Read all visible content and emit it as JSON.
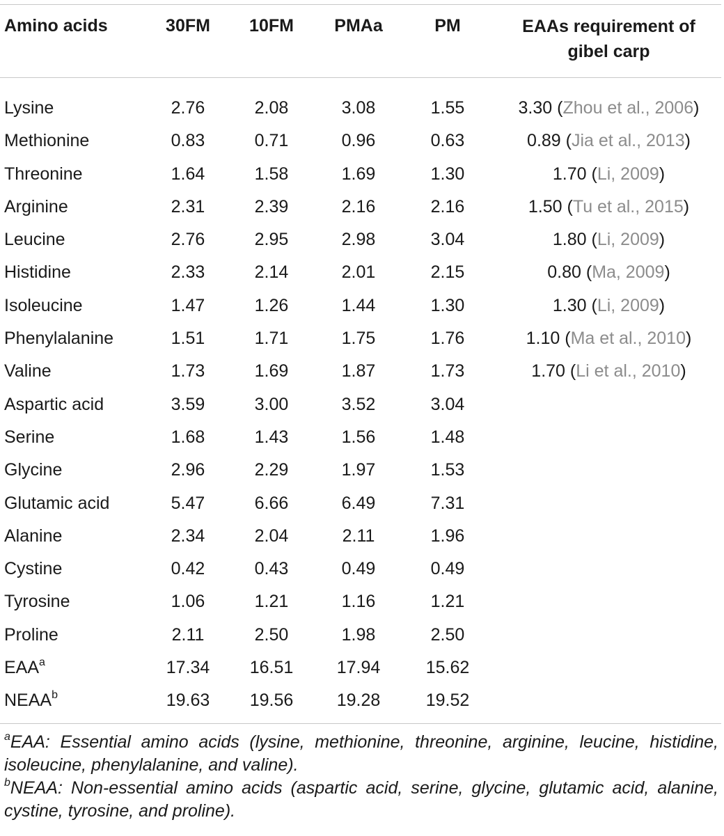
{
  "headers": {
    "amino_acids": "Amino acids",
    "col_30fm": "30FM",
    "col_10fm": "10FM",
    "col_pmaa": "PMAa",
    "col_pm": "PM",
    "requirement_line1": "EAAs requirement of",
    "requirement_line2": "gibel carp"
  },
  "rows": [
    {
      "name": "Lysine",
      "v30fm": "2.76",
      "v10fm": "2.08",
      "vpmaa": "3.08",
      "vpm": "1.55",
      "req_value": "3.30",
      "req_ref": "Zhou et al., 2006"
    },
    {
      "name": "Methionine",
      "v30fm": "0.83",
      "v10fm": "0.71",
      "vpmaa": "0.96",
      "vpm": "0.63",
      "req_value": "0.89",
      "req_ref": "Jia et al., 2013"
    },
    {
      "name": "Threonine",
      "v30fm": "1.64",
      "v10fm": "1.58",
      "vpmaa": "1.69",
      "vpm": "1.30",
      "req_value": "1.70",
      "req_ref": "Li, 2009"
    },
    {
      "name": "Arginine",
      "v30fm": "2.31",
      "v10fm": "2.39",
      "vpmaa": "2.16",
      "vpm": "2.16",
      "req_value": "1.50",
      "req_ref": "Tu et al., 2015"
    },
    {
      "name": "Leucine",
      "v30fm": "2.76",
      "v10fm": "2.95",
      "vpmaa": "2.98",
      "vpm": "3.04",
      "req_value": "1.80",
      "req_ref": "Li, 2009"
    },
    {
      "name": "Histidine",
      "v30fm": "2.33",
      "v10fm": "2.14",
      "vpmaa": "2.01",
      "vpm": "2.15",
      "req_value": "0.80",
      "req_ref": "Ma, 2009"
    },
    {
      "name": "Isoleucine",
      "v30fm": "1.47",
      "v10fm": "1.26",
      "vpmaa": "1.44",
      "vpm": "1.30",
      "req_value": "1.30",
      "req_ref": "Li, 2009"
    },
    {
      "name": "Phenylalanine",
      "v30fm": "1.51",
      "v10fm": "1.71",
      "vpmaa": "1.75",
      "vpm": "1.76",
      "req_value": "1.10",
      "req_ref": "Ma et al., 2010"
    },
    {
      "name": "Valine",
      "v30fm": "1.73",
      "v10fm": "1.69",
      "vpmaa": "1.87",
      "vpm": "1.73",
      "req_value": "1.70",
      "req_ref": "Li et al., 2010"
    },
    {
      "name": "Aspartic acid",
      "v30fm": "3.59",
      "v10fm": "3.00",
      "vpmaa": "3.52",
      "vpm": "3.04",
      "req_value": "",
      "req_ref": ""
    },
    {
      "name": "Serine",
      "v30fm": "1.68",
      "v10fm": "1.43",
      "vpmaa": "1.56",
      "vpm": "1.48",
      "req_value": "",
      "req_ref": ""
    },
    {
      "name": "Glycine",
      "v30fm": "2.96",
      "v10fm": "2.29",
      "vpmaa": "1.97",
      "vpm": "1.53",
      "req_value": "",
      "req_ref": ""
    },
    {
      "name": "Glutamic acid",
      "v30fm": "5.47",
      "v10fm": "6.66",
      "vpmaa": "6.49",
      "vpm": "7.31",
      "req_value": "",
      "req_ref": ""
    },
    {
      "name": "Alanine",
      "v30fm": "2.34",
      "v10fm": "2.04",
      "vpmaa": "2.11",
      "vpm": "1.96",
      "req_value": "",
      "req_ref": ""
    },
    {
      "name": "Cystine",
      "v30fm": "0.42",
      "v10fm": "0.43",
      "vpmaa": "0.49",
      "vpm": "0.49",
      "req_value": "",
      "req_ref": ""
    },
    {
      "name": "Tyrosine",
      "v30fm": "1.06",
      "v10fm": "1.21",
      "vpmaa": "1.16",
      "vpm": "1.21",
      "req_value": "",
      "req_ref": ""
    },
    {
      "name": "Proline",
      "v30fm": "2.11",
      "v10fm": "2.50",
      "vpmaa": "1.98",
      "vpm": "2.50",
      "req_value": "",
      "req_ref": ""
    },
    {
      "name": "EAA",
      "sup": "a",
      "v30fm": "17.34",
      "v10fm": "16.51",
      "vpmaa": "17.94",
      "vpm": "15.62",
      "req_value": "",
      "req_ref": ""
    },
    {
      "name": "NEAA",
      "sup": "b",
      "v30fm": "19.63",
      "v10fm": "19.56",
      "vpmaa": "19.28",
      "vpm": "19.52",
      "req_value": "",
      "req_ref": ""
    }
  ],
  "footnotes": [
    {
      "mark": "a",
      "text": "EAA: Essential amino acids (lysine, methionine, threonine, arginine, leucine, histidine, isoleucine, phenylalanine, and valine)."
    },
    {
      "mark": "b",
      "text": "NEAA: Non-essential amino acids (aspartic acid, serine, glycine, glutamic acid, alanine, cystine, tyrosine, and proline)."
    }
  ]
}
